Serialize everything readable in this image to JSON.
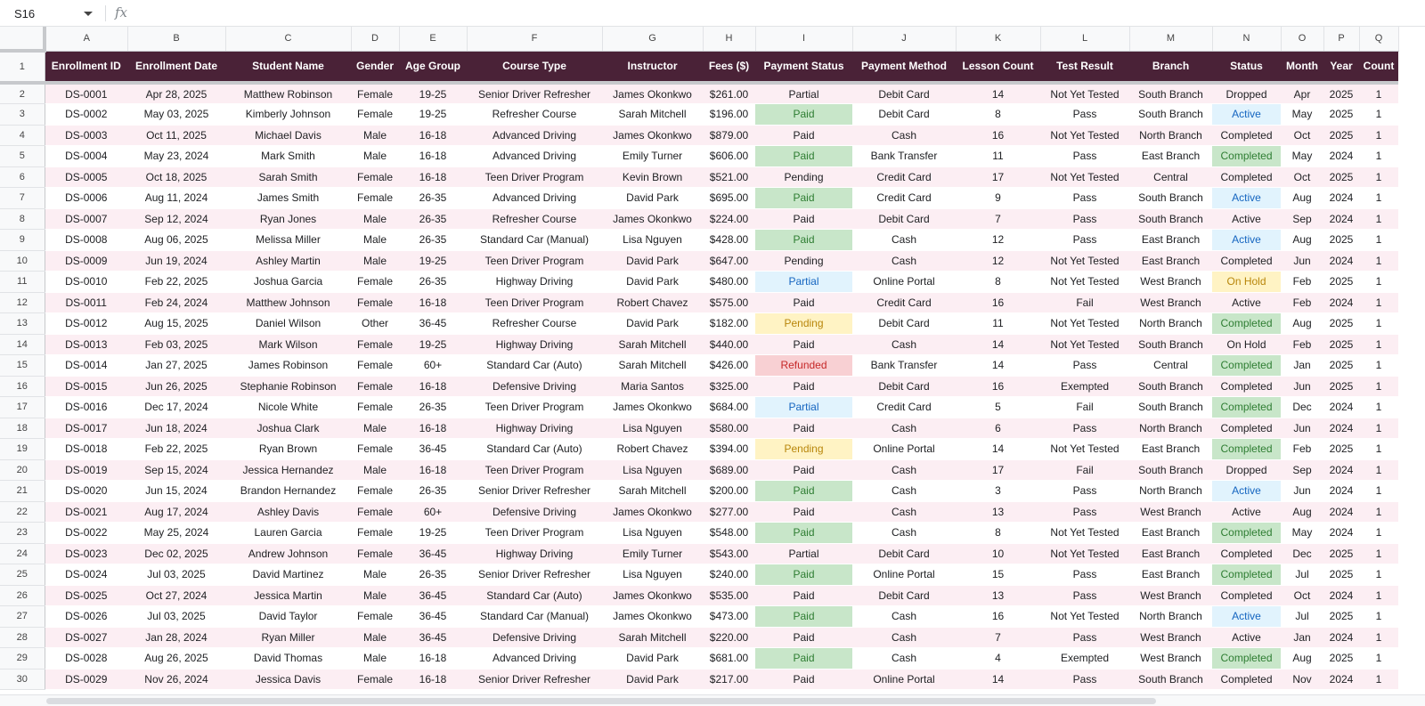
{
  "formula_bar": {
    "name_box": "S16",
    "fx_label": "fx",
    "formula_value": ""
  },
  "columns": [
    {
      "letter": "A",
      "header": "Enrollment ID"
    },
    {
      "letter": "B",
      "header": "Enrollment Date"
    },
    {
      "letter": "C",
      "header": "Student Name"
    },
    {
      "letter": "D",
      "header": "Gender"
    },
    {
      "letter": "E",
      "header": "Age Group"
    },
    {
      "letter": "F",
      "header": "Course Type"
    },
    {
      "letter": "G",
      "header": "Instructor"
    },
    {
      "letter": "H",
      "header": "Fees ($)"
    },
    {
      "letter": "I",
      "header": "Payment Status"
    },
    {
      "letter": "J",
      "header": "Payment Method"
    },
    {
      "letter": "K",
      "header": "Lesson Count"
    },
    {
      "letter": "L",
      "header": "Test Result"
    },
    {
      "letter": "M",
      "header": "Branch"
    },
    {
      "letter": "N",
      "header": "Status"
    },
    {
      "letter": "O",
      "header": "Month"
    },
    {
      "letter": "P",
      "header": "Year"
    },
    {
      "letter": "Q",
      "header": "Count"
    }
  ],
  "header_row_number": "1",
  "status_colors": {
    "green": "#c8e6c9",
    "blue": "#e1f3fd",
    "yellow": "#fff3c4",
    "red": "#f8d0d3",
    "header_bg": "#4a2237",
    "band": "#fceef3"
  },
  "rows": [
    {
      "num": "2",
      "cells": [
        "DS-0001",
        "Apr 28, 2025",
        "Matthew Robinson",
        "Female",
        "19-25",
        "Senior Driver Refresher",
        "James Okonkwo",
        "$261.00",
        "Partial",
        "Debit Card",
        "14",
        "Not Yet Tested",
        "South Branch",
        "Dropped",
        "Apr",
        "2025",
        "1"
      ],
      "pay_hl": "",
      "status_hl": ""
    },
    {
      "num": "3",
      "cells": [
        "DS-0002",
        "May 03, 2025",
        "Kimberly Johnson",
        "Female",
        "19-25",
        "Refresher Course",
        "Sarah Mitchell",
        "$196.00",
        "Paid",
        "Debit Card",
        "8",
        "Pass",
        "South Branch",
        "Active",
        "May",
        "2025",
        "1"
      ],
      "pay_hl": "green",
      "status_hl": "blue"
    },
    {
      "num": "4",
      "cells": [
        "DS-0003",
        "Oct 11, 2025",
        "Michael Davis",
        "Male",
        "16-18",
        "Advanced Driving",
        "James Okonkwo",
        "$879.00",
        "Paid",
        "Cash",
        "16",
        "Not Yet Tested",
        "North Branch",
        "Completed",
        "Oct",
        "2025",
        "1"
      ],
      "pay_hl": "",
      "status_hl": ""
    },
    {
      "num": "5",
      "cells": [
        "DS-0004",
        "May 23, 2024",
        "Mark Smith",
        "Male",
        "16-18",
        "Advanced Driving",
        "Emily Turner",
        "$606.00",
        "Paid",
        "Bank Transfer",
        "11",
        "Pass",
        "East Branch",
        "Completed",
        "May",
        "2024",
        "1"
      ],
      "pay_hl": "green",
      "status_hl": "green"
    },
    {
      "num": "6",
      "cells": [
        "DS-0005",
        "Oct 18, 2025",
        "Sarah Smith",
        "Female",
        "16-18",
        "Teen Driver Program",
        "Kevin Brown",
        "$521.00",
        "Pending",
        "Credit Card",
        "17",
        "Not Yet Tested",
        "Central",
        "Completed",
        "Oct",
        "2025",
        "1"
      ],
      "pay_hl": "",
      "status_hl": ""
    },
    {
      "num": "7",
      "cells": [
        "DS-0006",
        "Aug 11, 2024",
        "James Smith",
        "Female",
        "26-35",
        "Advanced Driving",
        "David Park",
        "$695.00",
        "Paid",
        "Credit Card",
        "9",
        "Pass",
        "South Branch",
        "Active",
        "Aug",
        "2024",
        "1"
      ],
      "pay_hl": "green",
      "status_hl": "blue"
    },
    {
      "num": "8",
      "cells": [
        "DS-0007",
        "Sep 12, 2024",
        "Ryan Jones",
        "Male",
        "26-35",
        "Refresher Course",
        "James Okonkwo",
        "$224.00",
        "Paid",
        "Debit Card",
        "7",
        "Pass",
        "South Branch",
        "Active",
        "Sep",
        "2024",
        "1"
      ],
      "pay_hl": "",
      "status_hl": ""
    },
    {
      "num": "9",
      "cells": [
        "DS-0008",
        "Aug 06, 2025",
        "Melissa Miller",
        "Male",
        "26-35",
        "Standard Car (Manual)",
        "Lisa Nguyen",
        "$428.00",
        "Paid",
        "Cash",
        "12",
        "Pass",
        "East Branch",
        "Active",
        "Aug",
        "2025",
        "1"
      ],
      "pay_hl": "green",
      "status_hl": "blue"
    },
    {
      "num": "10",
      "cells": [
        "DS-0009",
        "Jun 19, 2024",
        "Ashley Martin",
        "Male",
        "19-25",
        "Teen Driver Program",
        "David Park",
        "$647.00",
        "Pending",
        "Cash",
        "12",
        "Not Yet Tested",
        "East Branch",
        "Completed",
        "Jun",
        "2024",
        "1"
      ],
      "pay_hl": "",
      "status_hl": ""
    },
    {
      "num": "11",
      "cells": [
        "DS-0010",
        "Feb 22, 2025",
        "Joshua Garcia",
        "Female",
        "26-35",
        "Highway Driving",
        "David Park",
        "$480.00",
        "Partial",
        "Online Portal",
        "8",
        "Not Yet Tested",
        "West Branch",
        "On Hold",
        "Feb",
        "2025",
        "1"
      ],
      "pay_hl": "blue",
      "status_hl": "yellow"
    },
    {
      "num": "12",
      "cells": [
        "DS-0011",
        "Feb 24, 2024",
        "Matthew Johnson",
        "Female",
        "16-18",
        "Teen Driver Program",
        "Robert Chavez",
        "$575.00",
        "Paid",
        "Credit Card",
        "16",
        "Fail",
        "West Branch",
        "Active",
        "Feb",
        "2024",
        "1"
      ],
      "pay_hl": "",
      "status_hl": ""
    },
    {
      "num": "13",
      "cells": [
        "DS-0012",
        "Aug 15, 2025",
        "Daniel Wilson",
        "Other",
        "36-45",
        "Refresher Course",
        "David Park",
        "$182.00",
        "Pending",
        "Debit Card",
        "11",
        "Not Yet Tested",
        "North Branch",
        "Completed",
        "Aug",
        "2025",
        "1"
      ],
      "pay_hl": "yellow",
      "status_hl": "green"
    },
    {
      "num": "14",
      "cells": [
        "DS-0013",
        "Feb 03, 2025",
        "Mark Wilson",
        "Female",
        "19-25",
        "Highway Driving",
        "Sarah Mitchell",
        "$440.00",
        "Paid",
        "Cash",
        "14",
        "Not Yet Tested",
        "South Branch",
        "On Hold",
        "Feb",
        "2025",
        "1"
      ],
      "pay_hl": "",
      "status_hl": ""
    },
    {
      "num": "15",
      "cells": [
        "DS-0014",
        "Jan 27, 2025",
        "James Robinson",
        "Female",
        "60+",
        "Standard Car (Auto)",
        "Sarah Mitchell",
        "$426.00",
        "Refunded",
        "Bank Transfer",
        "14",
        "Pass",
        "Central",
        "Completed",
        "Jan",
        "2025",
        "1"
      ],
      "pay_hl": "red",
      "status_hl": "green"
    },
    {
      "num": "16",
      "cells": [
        "DS-0015",
        "Jun 26, 2025",
        "Stephanie Robinson",
        "Female",
        "16-18",
        "Defensive Driving",
        "Maria Santos",
        "$325.00",
        "Paid",
        "Debit Card",
        "16",
        "Exempted",
        "South Branch",
        "Completed",
        "Jun",
        "2025",
        "1"
      ],
      "pay_hl": "",
      "status_hl": ""
    },
    {
      "num": "17",
      "cells": [
        "DS-0016",
        "Dec 17, 2024",
        "Nicole White",
        "Female",
        "26-35",
        "Teen Driver Program",
        "James Okonkwo",
        "$684.00",
        "Partial",
        "Credit Card",
        "5",
        "Fail",
        "South Branch",
        "Completed",
        "Dec",
        "2024",
        "1"
      ],
      "pay_hl": "blue",
      "status_hl": "green"
    },
    {
      "num": "18",
      "cells": [
        "DS-0017",
        "Jun 18, 2024",
        "Joshua Clark",
        "Male",
        "16-18",
        "Highway Driving",
        "Lisa Nguyen",
        "$580.00",
        "Paid",
        "Cash",
        "6",
        "Pass",
        "North Branch",
        "Completed",
        "Jun",
        "2024",
        "1"
      ],
      "pay_hl": "",
      "status_hl": ""
    },
    {
      "num": "19",
      "cells": [
        "DS-0018",
        "Feb 22, 2025",
        "Ryan Brown",
        "Female",
        "36-45",
        "Standard Car (Auto)",
        "Robert Chavez",
        "$394.00",
        "Pending",
        "Online Portal",
        "14",
        "Not Yet Tested",
        "East Branch",
        "Completed",
        "Feb",
        "2025",
        "1"
      ],
      "pay_hl": "yellow",
      "status_hl": "green"
    },
    {
      "num": "20",
      "cells": [
        "DS-0019",
        "Sep 15, 2024",
        "Jessica Hernandez",
        "Male",
        "16-18",
        "Teen Driver Program",
        "Lisa Nguyen",
        "$689.00",
        "Paid",
        "Cash",
        "17",
        "Fail",
        "South Branch",
        "Dropped",
        "Sep",
        "2024",
        "1"
      ],
      "pay_hl": "",
      "status_hl": ""
    },
    {
      "num": "21",
      "cells": [
        "DS-0020",
        "Jun 15, 2024",
        "Brandon Hernandez",
        "Female",
        "26-35",
        "Senior Driver Refresher",
        "Sarah Mitchell",
        "$200.00",
        "Paid",
        "Cash",
        "3",
        "Pass",
        "North Branch",
        "Active",
        "Jun",
        "2024",
        "1"
      ],
      "pay_hl": "green",
      "status_hl": "blue"
    },
    {
      "num": "22",
      "cells": [
        "DS-0021",
        "Aug 17, 2024",
        "Ashley Davis",
        "Female",
        "60+",
        "Defensive Driving",
        "James Okonkwo",
        "$277.00",
        "Paid",
        "Cash",
        "13",
        "Pass",
        "West Branch",
        "Active",
        "Aug",
        "2024",
        "1"
      ],
      "pay_hl": "",
      "status_hl": ""
    },
    {
      "num": "23",
      "cells": [
        "DS-0022",
        "May 25, 2024",
        "Lauren Garcia",
        "Female",
        "19-25",
        "Teen Driver Program",
        "Lisa Nguyen",
        "$548.00",
        "Paid",
        "Cash",
        "8",
        "Not Yet Tested",
        "East Branch",
        "Completed",
        "May",
        "2024",
        "1"
      ],
      "pay_hl": "green",
      "status_hl": "green"
    },
    {
      "num": "24",
      "cells": [
        "DS-0023",
        "Dec 02, 2025",
        "Andrew Johnson",
        "Female",
        "36-45",
        "Highway Driving",
        "Emily Turner",
        "$543.00",
        "Partial",
        "Debit Card",
        "10",
        "Not Yet Tested",
        "East Branch",
        "Completed",
        "Dec",
        "2025",
        "1"
      ],
      "pay_hl": "",
      "status_hl": ""
    },
    {
      "num": "25",
      "cells": [
        "DS-0024",
        "Jul 03, 2025",
        "David Martinez",
        "Male",
        "26-35",
        "Senior Driver Refresher",
        "Lisa Nguyen",
        "$240.00",
        "Paid",
        "Online Portal",
        "15",
        "Pass",
        "East Branch",
        "Completed",
        "Jul",
        "2025",
        "1"
      ],
      "pay_hl": "green",
      "status_hl": "green"
    },
    {
      "num": "26",
      "cells": [
        "DS-0025",
        "Oct 27, 2024",
        "Jessica Martin",
        "Male",
        "36-45",
        "Standard Car (Auto)",
        "James Okonkwo",
        "$535.00",
        "Paid",
        "Debit Card",
        "13",
        "Pass",
        "West Branch",
        "Completed",
        "Oct",
        "2024",
        "1"
      ],
      "pay_hl": "",
      "status_hl": ""
    },
    {
      "num": "27",
      "cells": [
        "DS-0026",
        "Jul 03, 2025",
        "David Taylor",
        "Female",
        "36-45",
        "Standard Car (Manual)",
        "James Okonkwo",
        "$473.00",
        "Paid",
        "Cash",
        "16",
        "Not Yet Tested",
        "North Branch",
        "Active",
        "Jul",
        "2025",
        "1"
      ],
      "pay_hl": "green",
      "status_hl": "blue"
    },
    {
      "num": "28",
      "cells": [
        "DS-0027",
        "Jan 28, 2024",
        "Ryan Miller",
        "Male",
        "36-45",
        "Defensive Driving",
        "Sarah Mitchell",
        "$220.00",
        "Paid",
        "Cash",
        "7",
        "Pass",
        "West Branch",
        "Active",
        "Jan",
        "2024",
        "1"
      ],
      "pay_hl": "",
      "status_hl": ""
    },
    {
      "num": "29",
      "cells": [
        "DS-0028",
        "Aug 26, 2025",
        "David Thomas",
        "Male",
        "16-18",
        "Advanced Driving",
        "David Park",
        "$681.00",
        "Paid",
        "Cash",
        "4",
        "Exempted",
        "West Branch",
        "Completed",
        "Aug",
        "2025",
        "1"
      ],
      "pay_hl": "green",
      "status_hl": "green"
    },
    {
      "num": "30",
      "cells": [
        "DS-0029",
        "Nov 26, 2024",
        "Jessica Davis",
        "Female",
        "16-18",
        "Senior Driver Refresher",
        "David Park",
        "$217.00",
        "Paid",
        "Online Portal",
        "14",
        "Pass",
        "South Branch",
        "Completed",
        "Nov",
        "2024",
        "1"
      ],
      "pay_hl": "",
      "status_hl": ""
    }
  ]
}
